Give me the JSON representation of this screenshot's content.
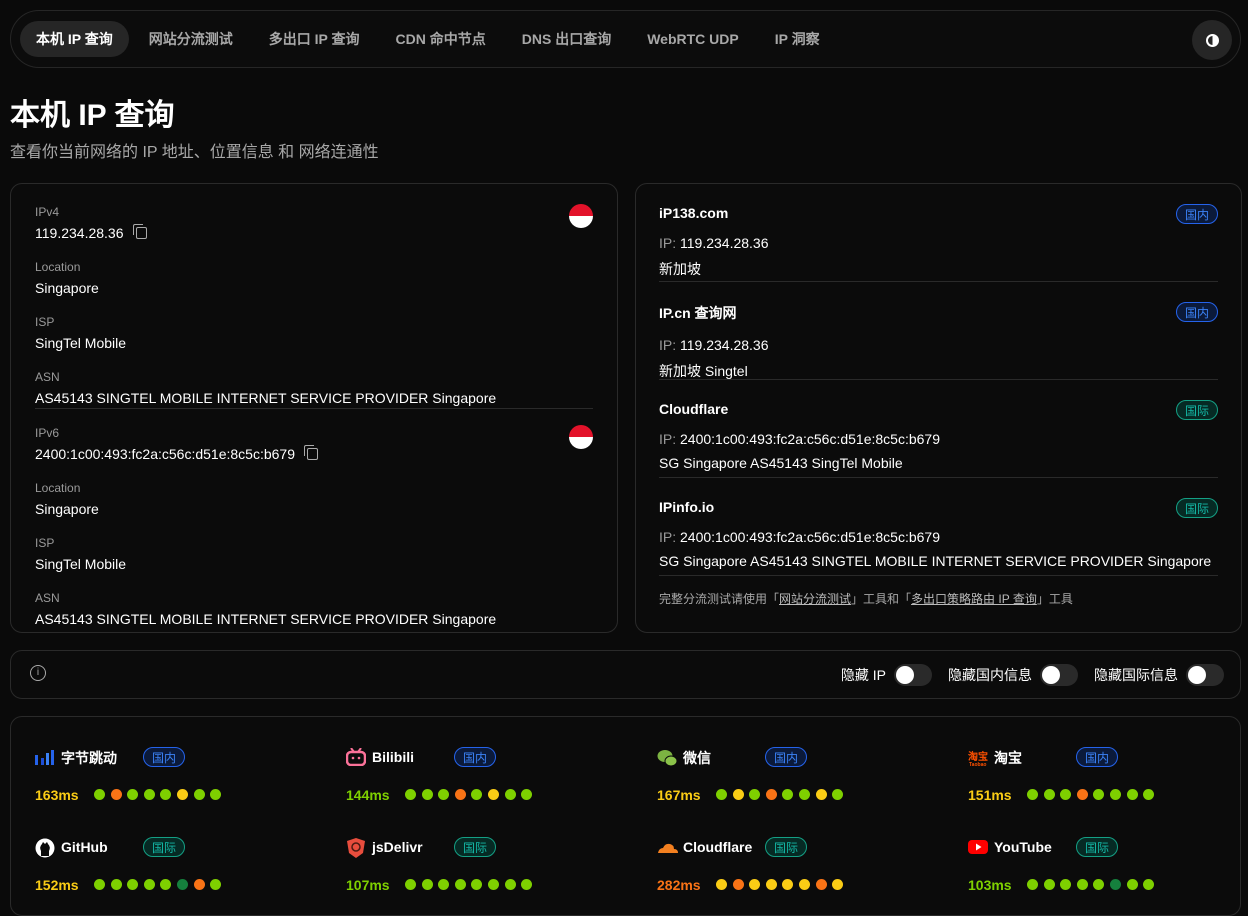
{
  "nav": {
    "tabs": [
      {
        "label": "本机 IP 查询",
        "active": true
      },
      {
        "label": "网站分流测试"
      },
      {
        "label": "多出口 IP 查询"
      },
      {
        "label": "CDN 命中节点"
      },
      {
        "label": "DNS 出口查询"
      },
      {
        "label": "WebRTC UDP"
      },
      {
        "label": "IP 洞察"
      }
    ],
    "theme_icon": "half-circle-contrast-icon"
  },
  "page": {
    "title": "本机 IP 查询",
    "subtitle": "查看你当前网络的 IP 地址、位置信息 和 网络连通性"
  },
  "local": [
    {
      "label": "IPv4",
      "ip": "119.234.28.36",
      "flag": "singapore-flag",
      "loc_label": "Location",
      "loc": "Singapore",
      "isp_label": "ISP",
      "isp": "SingTel Mobile",
      "asn_label": "ASN",
      "asn": "AS45143 SINGTEL MOBILE INTERNET SERVICE PROVIDER Singapore"
    },
    {
      "label": "IPv6",
      "ip": "2400:1c00:493:fc2a:c56c:d51e:8c5c:b679",
      "flag": "singapore-flag",
      "loc_label": "Location",
      "loc": "Singapore",
      "isp_label": "ISP",
      "isp": "SingTel Mobile",
      "asn_label": "ASN",
      "asn": "AS45143 SINGTEL MOBILE INTERNET SERVICE PROVIDER Singapore"
    }
  ],
  "sources": [
    {
      "name": "iP138.com",
      "badge": "国内",
      "type": "cn",
      "ip_label": "IP:",
      "ip": "119.234.28.36",
      "info": "新加坡"
    },
    {
      "name": "IP.cn 查询网",
      "badge": "国内",
      "type": "cn",
      "ip_label": "IP:",
      "ip": "119.234.28.36",
      "info": "新加坡 Singtel"
    },
    {
      "name": "Cloudflare",
      "badge": "国际",
      "type": "intl",
      "ip_label": "IP:",
      "ip": "2400:1c00:493:fc2a:c56c:d51e:8c5c:b679",
      "info": "SG Singapore AS45143 SingTel Mobile"
    },
    {
      "name": "IPinfo.io",
      "badge": "国际",
      "type": "intl",
      "ip_label": "IP:",
      "ip": "2400:1c00:493:fc2a:c56c:d51e:8c5c:b679",
      "info": "SG Singapore AS45143 SINGTEL MOBILE INTERNET SERVICE PROVIDER Singapore"
    }
  ],
  "note": {
    "pre": "完整分流测试请使用「",
    "link1": "网站分流测试",
    "mid": "」工具和「",
    "link2": "多出口策略路由 IP 查询",
    "post": "」工具"
  },
  "toolbar": {
    "info_icon": "info-icon",
    "toggles": [
      {
        "label": "隐藏 IP",
        "on": false
      },
      {
        "label": "隐藏国内信息",
        "on": false
      },
      {
        "label": "隐藏国际信息",
        "on": false
      }
    ]
  },
  "colors": {
    "green": "#7ed000",
    "orange": "#f97316",
    "yellow": "#facc15",
    "darkgreen": "#15803d",
    "cn": "#3b82f6",
    "intl": "#14b8a6"
  },
  "services": [
    {
      "name": "字节跳动",
      "icon": "bytedance-icon",
      "badge": "国内",
      "type": "cn",
      "latency": "163ms",
      "level": "yellow",
      "dots": [
        "green",
        "orange",
        "green",
        "green",
        "green",
        "yellow",
        "green",
        "green"
      ]
    },
    {
      "name": "Bilibili",
      "icon": "bilibili-icon",
      "badge": "国内",
      "type": "cn",
      "latency": "144ms",
      "level": "green",
      "dots": [
        "green",
        "green",
        "green",
        "orange",
        "green",
        "yellow",
        "green",
        "green"
      ]
    },
    {
      "name": "微信",
      "icon": "wechat-icon",
      "badge": "国内",
      "type": "cn",
      "latency": "167ms",
      "level": "yellow",
      "dots": [
        "green",
        "yellow",
        "green",
        "orange",
        "green",
        "green",
        "yellow",
        "green"
      ]
    },
    {
      "name": "淘宝",
      "icon": "taobao-icon",
      "badge": "国内",
      "type": "cn",
      "latency": "151ms",
      "level": "yellow",
      "dots": [
        "green",
        "green",
        "green",
        "orange",
        "green",
        "green",
        "green",
        "green"
      ]
    },
    {
      "name": "GitHub",
      "icon": "github-icon",
      "badge": "国际",
      "type": "intl",
      "latency": "152ms",
      "level": "yellow",
      "dots": [
        "green",
        "green",
        "green",
        "green",
        "green",
        "darkgreen",
        "orange",
        "green"
      ]
    },
    {
      "name": "jsDelivr",
      "icon": "jsdelivr-icon",
      "badge": "国际",
      "type": "intl",
      "latency": "107ms",
      "level": "green",
      "dots": [
        "green",
        "green",
        "green",
        "green",
        "green",
        "green",
        "green",
        "green"
      ]
    },
    {
      "name": "Cloudflare",
      "icon": "cloudflare-icon",
      "badge": "国际",
      "type": "intl",
      "latency": "282ms",
      "level": "orange",
      "dots": [
        "yellow",
        "orange",
        "yellow",
        "yellow",
        "yellow",
        "yellow",
        "orange",
        "yellow"
      ]
    },
    {
      "name": "YouTube",
      "icon": "youtube-icon",
      "badge": "国际",
      "type": "intl",
      "latency": "103ms",
      "level": "green",
      "dots": [
        "green",
        "green",
        "green",
        "green",
        "green",
        "darkgreen",
        "green",
        "green"
      ]
    }
  ]
}
